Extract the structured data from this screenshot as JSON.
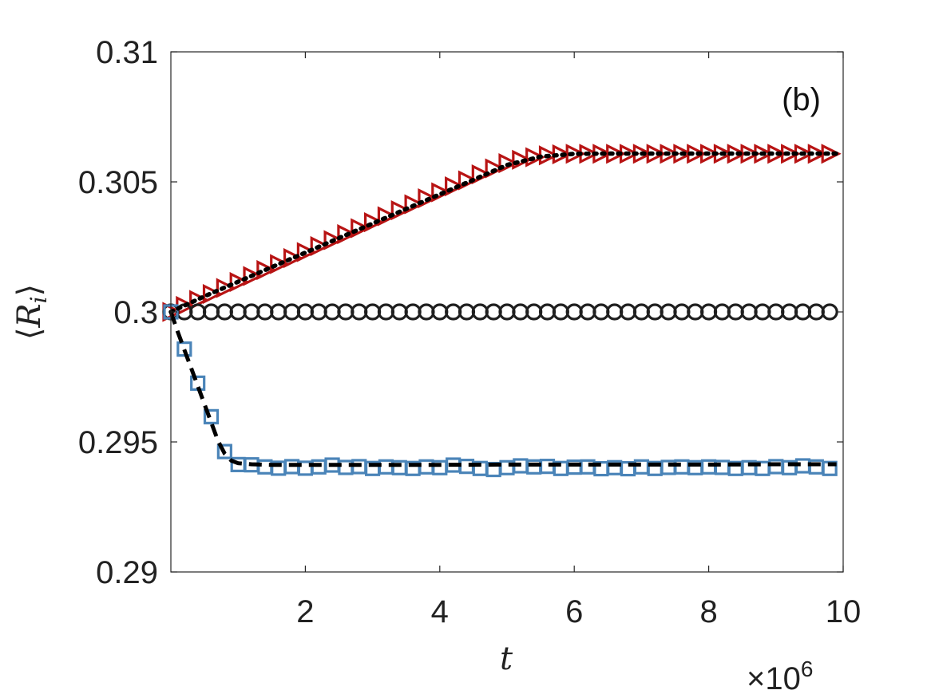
{
  "chart_data": {
    "type": "line",
    "panel_label": "(b)",
    "xlabel": "t",
    "ylabel": "⟨R_i⟩",
    "ylabel_parts": {
      "open": "⟨",
      "main": "R",
      "sub": "i",
      "close": "⟩"
    },
    "x_multiplier": {
      "base": "×10",
      "exponent": "6"
    },
    "xlim": [
      0,
      10
    ],
    "ylim": [
      0.29,
      0.31
    ],
    "xticks": [
      2,
      4,
      6,
      8,
      10
    ],
    "xtick_labels": [
      "2",
      "4",
      "6",
      "8",
      "10"
    ],
    "yticks": [
      0.29,
      0.295,
      0.3,
      0.305,
      0.31
    ],
    "ytick_labels": [
      "0.29",
      "0.295",
      "0.3",
      "0.305",
      "0.31"
    ],
    "grid": false,
    "series": [
      {
        "marker": "triangle-right",
        "color": "#b81414",
        "x": [
          0,
          0.2,
          0.4,
          0.6,
          0.8,
          1.0,
          1.2,
          1.4,
          1.6,
          1.8,
          2.0,
          2.2,
          2.4,
          2.6,
          2.8,
          3.0,
          3.2,
          3.4,
          3.6,
          3.8,
          4.0,
          4.2,
          4.4,
          4.6,
          4.8,
          5.0,
          5.2,
          5.4,
          5.6,
          5.8,
          6.0,
          6.2,
          6.4,
          6.6,
          6.8,
          7.0,
          7.2,
          7.4,
          7.6,
          7.8,
          8.0,
          8.2,
          8.4,
          8.6,
          8.8,
          9.0,
          9.2,
          9.4,
          9.6,
          9.8
        ],
        "y": [
          0.3,
          0.30023,
          0.30046,
          0.30069,
          0.30092,
          0.30115,
          0.30138,
          0.30161,
          0.30184,
          0.30207,
          0.3023,
          0.30253,
          0.30276,
          0.30299,
          0.30322,
          0.30345,
          0.30368,
          0.30391,
          0.30414,
          0.30437,
          0.3046,
          0.30483,
          0.30506,
          0.30529,
          0.30552,
          0.30572,
          0.30585,
          0.30595,
          0.30602,
          0.30606,
          0.30608,
          0.30608,
          0.30608,
          0.30608,
          0.30608,
          0.30608,
          0.30608,
          0.30608,
          0.30608,
          0.30608,
          0.30608,
          0.30608,
          0.30608,
          0.30608,
          0.30608,
          0.30608,
          0.30608,
          0.30608,
          0.30608,
          0.30608
        ]
      },
      {
        "marker": "circle",
        "color": "#1f1f1f",
        "x": [
          0,
          0.2,
          0.4,
          0.6,
          0.8,
          1.0,
          1.2,
          1.4,
          1.6,
          1.8,
          2.0,
          2.2,
          2.4,
          2.6,
          2.8,
          3.0,
          3.2,
          3.4,
          3.6,
          3.8,
          4.0,
          4.2,
          4.4,
          4.6,
          4.8,
          5.0,
          5.2,
          5.4,
          5.6,
          5.8,
          6.0,
          6.2,
          6.4,
          6.6,
          6.8,
          7.0,
          7.2,
          7.4,
          7.6,
          7.8,
          8.0,
          8.2,
          8.4,
          8.6,
          8.8,
          9.0,
          9.2,
          9.4,
          9.6,
          9.8
        ],
        "y": [
          0.3,
          0.3,
          0.3,
          0.3,
          0.3,
          0.3,
          0.3,
          0.3,
          0.3,
          0.3,
          0.3,
          0.3,
          0.3,
          0.3,
          0.3,
          0.3,
          0.3,
          0.3,
          0.3,
          0.3,
          0.3,
          0.3,
          0.3,
          0.3,
          0.3,
          0.3,
          0.3,
          0.3,
          0.3,
          0.3,
          0.3,
          0.3,
          0.3,
          0.3,
          0.3,
          0.3,
          0.3,
          0.3,
          0.3,
          0.3,
          0.3,
          0.3,
          0.3,
          0.3,
          0.3,
          0.3,
          0.3,
          0.3,
          0.3,
          0.3
        ]
      },
      {
        "marker": "square",
        "color": "#4a84b8",
        "x": [
          0,
          0.2,
          0.4,
          0.6,
          0.8,
          1.0,
          1.2,
          1.4,
          1.6,
          1.8,
          2.0,
          2.2,
          2.4,
          2.6,
          2.8,
          3.0,
          3.2,
          3.4,
          3.6,
          3.8,
          4.0,
          4.2,
          4.4,
          4.6,
          4.8,
          5.0,
          5.2,
          5.4,
          5.6,
          5.8,
          6.0,
          6.2,
          6.4,
          6.6,
          6.8,
          7.0,
          7.2,
          7.4,
          7.6,
          7.8,
          8.0,
          8.2,
          8.4,
          8.6,
          8.8,
          9.0,
          9.2,
          9.4,
          9.6,
          9.8
        ],
        "y": [
          0.3,
          0.29857,
          0.29726,
          0.29597,
          0.29463,
          0.29413,
          0.29412,
          0.29404,
          0.29399,
          0.29405,
          0.29399,
          0.29404,
          0.29411,
          0.29402,
          0.29405,
          0.29398,
          0.29404,
          0.29401,
          0.29398,
          0.29404,
          0.29401,
          0.29411,
          0.29406,
          0.29398,
          0.29394,
          0.29401,
          0.29408,
          0.29404,
          0.29406,
          0.29398,
          0.29403,
          0.29404,
          0.29397,
          0.29401,
          0.29397,
          0.29404,
          0.29398,
          0.29402,
          0.29404,
          0.29401,
          0.29404,
          0.29402,
          0.29398,
          0.29401,
          0.29398,
          0.29405,
          0.29401,
          0.29408,
          0.29404,
          0.29398
        ]
      },
      {
        "line": "dotted",
        "color": "#000000",
        "x": [
          0,
          0.5,
          1.0,
          1.5,
          2.0,
          2.5,
          3.0,
          3.5,
          4.0,
          4.5,
          5.0,
          5.5,
          6.0,
          6.5,
          7.0,
          8.0,
          9.0,
          9.9
        ],
        "y": [
          0.3,
          0.3006,
          0.30116,
          0.30172,
          0.30228,
          0.30284,
          0.3034,
          0.30396,
          0.30452,
          0.30508,
          0.30565,
          0.30597,
          0.30608,
          0.30609,
          0.30609,
          0.30609,
          0.30609,
          0.30609
        ]
      },
      {
        "line": "dashed",
        "color": "#000000",
        "x": [
          0,
          0.1,
          0.2,
          0.3,
          0.4,
          0.5,
          0.6,
          0.7,
          0.8,
          0.9,
          1.0,
          1.2,
          1.5,
          2.0,
          3.0,
          4.0,
          5.0,
          6.0,
          7.0,
          8.0,
          9.0,
          9.9
        ],
        "y": [
          0.3,
          0.29925,
          0.29855,
          0.29785,
          0.29715,
          0.29645,
          0.29575,
          0.29505,
          0.29455,
          0.29428,
          0.29418,
          0.29414,
          0.29412,
          0.29412,
          0.29412,
          0.29412,
          0.29413,
          0.29413,
          0.29413,
          0.29413,
          0.29414,
          0.29414
        ]
      }
    ]
  }
}
